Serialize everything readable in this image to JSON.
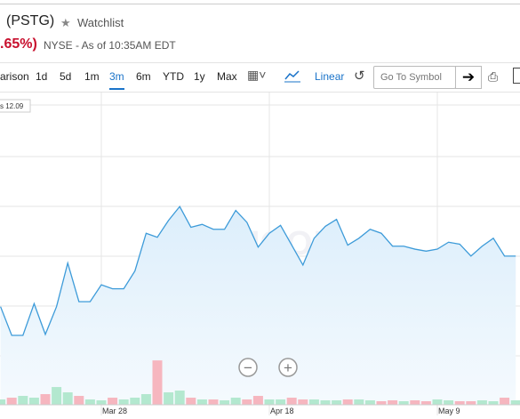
{
  "header": {
    "symbol": "(PSTG)",
    "watchlist": "Watchlist",
    "change": ".65%)",
    "exchange": "NYSE - As of 10:35AM EDT"
  },
  "toolbar": {
    "ranges": [
      "arison",
      "1d",
      "5d",
      "1m",
      "3m",
      "6m",
      "YTD",
      "1y",
      "Max"
    ],
    "active": 4,
    "scale": "Linear",
    "search_placeholder": "Go To Symbol"
  },
  "chart_data": {
    "type": "line",
    "categories": [
      null,
      null,
      null,
      null,
      null,
      null,
      null,
      null,
      null,
      "Mar 28",
      null,
      null,
      null,
      null,
      null,
      null,
      null,
      null,
      null,
      null,
      null,
      null,
      null,
      null,
      "Apr 18",
      null,
      null,
      null,
      null,
      null,
      null,
      null,
      null,
      null,
      null,
      null,
      null,
      null,
      null,
      "May 9",
      null,
      null,
      null,
      null,
      null,
      null,
      null
    ],
    "values": [
      12.49,
      12.2,
      12.2,
      12.52,
      12.21,
      12.49,
      12.93,
      12.54,
      12.54,
      12.71,
      12.67,
      12.67,
      12.85,
      13.23,
      13.19,
      13.36,
      13.5,
      13.29,
      13.32,
      13.27,
      13.27,
      13.46,
      13.34,
      13.09,
      13.23,
      13.31,
      13.11,
      12.91,
      13.18,
      13.3,
      13.37,
      13.11,
      13.18,
      13.27,
      13.23,
      13.1,
      13.1,
      13.07,
      13.05,
      13.07,
      13.14,
      13.12,
      13.0,
      13.1,
      13.18,
      13.0,
      13.0
    ],
    "volume": [
      6,
      8,
      10,
      8,
      12,
      20,
      14,
      10,
      6,
      5,
      8,
      6,
      8,
      12,
      50,
      14,
      16,
      8,
      6,
      6,
      5,
      8,
      6,
      10,
      6,
      6,
      8,
      6,
      6,
      5,
      5,
      6,
      6,
      5,
      4,
      5,
      4,
      5,
      4,
      6,
      5,
      4,
      4,
      5,
      4,
      8,
      5
    ],
    "color": "#3d9bd9",
    "volume_up_color": "#b3e8cf",
    "volume_down_color": "#f6b6bf",
    "ylim": [
      11.5,
      14.65
    ],
    "y2lim": [
      0,
      352
    ],
    "marker_label": "s 12.09",
    "watermark": [
      "YAHOO!",
      "FINANCE"
    ]
  }
}
